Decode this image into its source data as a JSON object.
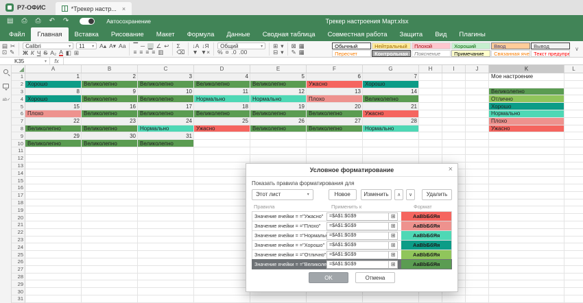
{
  "titlebar": {
    "app_name": "Р7-ОФИС",
    "tab_title": "*Трекер настр...",
    "tab_close": "×"
  },
  "ribbon": {
    "autosave_label": "Автосохранение",
    "doc_title": "Трекер настроения Март.xlsx",
    "tabs": [
      {
        "label": "Файл",
        "active": false
      },
      {
        "label": "Главная",
        "active": true
      },
      {
        "label": "Вставка",
        "active": false
      },
      {
        "label": "Рисование",
        "active": false
      },
      {
        "label": "Макет",
        "active": false
      },
      {
        "label": "Формула",
        "active": false
      },
      {
        "label": "Данные",
        "active": false
      },
      {
        "label": "Сводная таблица",
        "active": false
      },
      {
        "label": "Совместная работа",
        "active": false
      },
      {
        "label": "Защита",
        "active": false
      },
      {
        "label": "Вид",
        "active": false
      },
      {
        "label": "Плагины",
        "active": false
      }
    ],
    "icons": {
      "save": "▤",
      "print": "⎙",
      "quick_print": "⎙",
      "undo": "↶",
      "redo": "↷"
    }
  },
  "toolbar": {
    "font_name": "Calibri",
    "font_size": "11",
    "number_format": "Общий",
    "icons": {
      "paste": "▤",
      "cut": "✂",
      "copy": "⊡",
      "copy_style": "✎",
      "inc_font": "A▴",
      "dec_font": "A▾",
      "case": "Aa",
      "bold": "Ж",
      "italic": "К",
      "underline": "Ч",
      "strike": "S",
      "subscript": "A₂",
      "font_color": "А",
      "fill_color": "◧",
      "borders": "⊞",
      "valign_top": "▔",
      "valign_mid": "─",
      "valign_bot": "▁",
      "orientation": "∠",
      "wrap": "↩",
      "align_left": "≡",
      "align_center": "≡",
      "align_right": "≡",
      "align_just": "≡",
      "merge": "▥",
      "sum": "Σ",
      "clear": "⌫",
      "sort_asc": "↓А",
      "sort_desc": "↓Я",
      "filter": "▼",
      "clear_filter": "▼×",
      "percent": "%",
      "accounting": "¤",
      "dec_decimal": ".0",
      "inc_decimal": ".00",
      "insert_cells": "⊞",
      "delete_cells": "⊟",
      "clear_style": "⊠",
      "cond_format": "▦",
      "paintbrush": "✎",
      "table_template": "▦",
      "dropdown": "▾"
    },
    "style_gallery": {
      "items": [
        {
          "label": "Обычный",
          "bg": "#ffffff",
          "fg": "#000000",
          "border": "#5b5b5b",
          "selected": true
        },
        {
          "label": "Нейтральный",
          "bg": "#ffeb9c",
          "fg": "#9c6500"
        },
        {
          "label": "Плохой",
          "bg": "#ffc7ce",
          "fg": "#9c0006"
        },
        {
          "label": "Хороший",
          "bg": "#c6efce",
          "fg": "#006100"
        },
        {
          "label": "Ввод",
          "bg": "#ffcc99",
          "fg": "#3f3f76",
          "border": "#7f7f7f"
        },
        {
          "label": "Вывод",
          "bg": "#f2f2f2",
          "fg": "#3f3f3f",
          "border": "#3f3f3f"
        },
        {
          "label": "Пересчет",
          "bg": "#ffffff",
          "fg": "#fa7d00"
        },
        {
          "label": "Контрольная я",
          "bg": "#a5a5a5",
          "fg": "#ffffff",
          "bold": true,
          "border": "#3f3f3f"
        },
        {
          "label": "Пояснение",
          "bg": "#ffffff",
          "fg": "#7f7f7f",
          "italic": true
        },
        {
          "label": "Примечание",
          "bg": "#ffffcc",
          "fg": "#000000",
          "border": "#b2b2b2"
        },
        {
          "label": "Связанная ячей",
          "bg": "#ffffff",
          "fg": "#fa7d00",
          "underline": true
        },
        {
          "label": "Текст предупре",
          "bg": "#ffffff",
          "fg": "#ff0000"
        }
      ]
    }
  },
  "formula_bar": {
    "name_box": "K35",
    "fx_label": "fx",
    "input_value": ""
  },
  "side_panel": {
    "icons": [
      "search-icon",
      "comments-icon",
      "spellcheck-icon"
    ],
    "spell_glyph": "ab✓"
  },
  "grid": {
    "columns": [
      {
        "id": "A"
      },
      {
        "id": "B"
      },
      {
        "id": "C"
      },
      {
        "id": "D"
      },
      {
        "id": "E"
      },
      {
        "id": "F"
      },
      {
        "id": "G"
      },
      {
        "id": "H"
      },
      {
        "id": "I"
      },
      {
        "id": "J"
      },
      {
        "id": "K",
        "selected": true
      },
      {
        "id": "L"
      }
    ],
    "row_count": 32,
    "moods": {
      "Великолепно": {
        "bg": "#5b9c52"
      },
      "Отлично": {
        "bg": "#90c55b"
      },
      "Хорошо": {
        "bg": "#0c9c87"
      },
      "Нормально": {
        "bg": "#4ed8b5"
      },
      "Плохо": {
        "bg": "#ee928e"
      },
      "Ужасно": {
        "bg": "#f5655f"
      }
    },
    "cells": [
      {
        "r": 1,
        "c": "A",
        "v": "1",
        "t": "num"
      },
      {
        "r": 1,
        "c": "B",
        "v": "2",
        "t": "num"
      },
      {
        "r": 1,
        "c": "C",
        "v": "3",
        "t": "num"
      },
      {
        "r": 1,
        "c": "D",
        "v": "4",
        "t": "num"
      },
      {
        "r": 1,
        "c": "E",
        "v": "5",
        "t": "num"
      },
      {
        "r": 1,
        "c": "F",
        "v": "6",
        "t": "num"
      },
      {
        "r": 1,
        "c": "G",
        "v": "7",
        "t": "num"
      },
      {
        "r": 1,
        "c": "K",
        "v": "Мое настроение",
        "t": "text"
      },
      {
        "r": 2,
        "c": "A",
        "v": "Хорошо",
        "t": "mood"
      },
      {
        "r": 2,
        "c": "B",
        "v": "Великолепно",
        "t": "mood"
      },
      {
        "r": 2,
        "c": "C",
        "v": "Великолепно",
        "t": "mood"
      },
      {
        "r": 2,
        "c": "D",
        "v": "Великолепно",
        "t": "mood"
      },
      {
        "r": 2,
        "c": "E",
        "v": "Великолепно",
        "t": "mood"
      },
      {
        "r": 2,
        "c": "F",
        "v": "Ужасно",
        "t": "mood"
      },
      {
        "r": 2,
        "c": "G",
        "v": "Хорошо",
        "t": "mood"
      },
      {
        "r": 3,
        "c": "A",
        "v": "8",
        "t": "num"
      },
      {
        "r": 3,
        "c": "B",
        "v": "9",
        "t": "num"
      },
      {
        "r": 3,
        "c": "C",
        "v": "10",
        "t": "num"
      },
      {
        "r": 3,
        "c": "D",
        "v": "11",
        "t": "num"
      },
      {
        "r": 3,
        "c": "E",
        "v": "12",
        "t": "num"
      },
      {
        "r": 3,
        "c": "F",
        "v": "13",
        "t": "num"
      },
      {
        "r": 3,
        "c": "G",
        "v": "14",
        "t": "num"
      },
      {
        "r": 3,
        "c": "K",
        "v": "Великолепно",
        "t": "mood"
      },
      {
        "r": 4,
        "c": "A",
        "v": "Хорошо",
        "t": "mood"
      },
      {
        "r": 4,
        "c": "B",
        "v": "Великолепно",
        "t": "mood"
      },
      {
        "r": 4,
        "c": "C",
        "v": "Великолепно",
        "t": "mood"
      },
      {
        "r": 4,
        "c": "D",
        "v": "Нормально",
        "t": "mood"
      },
      {
        "r": 4,
        "c": "E",
        "v": "Нормально",
        "t": "mood"
      },
      {
        "r": 4,
        "c": "F",
        "v": "Плохо",
        "t": "mood"
      },
      {
        "r": 4,
        "c": "G",
        "v": "Великолепно",
        "t": "mood"
      },
      {
        "r": 4,
        "c": "K",
        "v": "Отлично",
        "t": "mood"
      },
      {
        "r": 5,
        "c": "A",
        "v": "15",
        "t": "num"
      },
      {
        "r": 5,
        "c": "B",
        "v": "16",
        "t": "num"
      },
      {
        "r": 5,
        "c": "C",
        "v": "17",
        "t": "num"
      },
      {
        "r": 5,
        "c": "D",
        "v": "18",
        "t": "num"
      },
      {
        "r": 5,
        "c": "E",
        "v": "19",
        "t": "num"
      },
      {
        "r": 5,
        "c": "F",
        "v": "20",
        "t": "num"
      },
      {
        "r": 5,
        "c": "G",
        "v": "21",
        "t": "num"
      },
      {
        "r": 5,
        "c": "K",
        "v": "Хорошо",
        "t": "mood"
      },
      {
        "r": 6,
        "c": "A",
        "v": "Плохо",
        "t": "mood"
      },
      {
        "r": 6,
        "c": "B",
        "v": "Великолепно",
        "t": "mood"
      },
      {
        "r": 6,
        "c": "C",
        "v": "Великолепно",
        "t": "mood"
      },
      {
        "r": 6,
        "c": "D",
        "v": "Великолепно",
        "t": "mood"
      },
      {
        "r": 6,
        "c": "E",
        "v": "Великолепно",
        "t": "mood"
      },
      {
        "r": 6,
        "c": "F",
        "v": "Великолепно",
        "t": "mood"
      },
      {
        "r": 6,
        "c": "G",
        "v": "Ужасно",
        "t": "mood"
      },
      {
        "r": 6,
        "c": "K",
        "v": "Нормально",
        "t": "mood"
      },
      {
        "r": 7,
        "c": "A",
        "v": "22",
        "t": "num"
      },
      {
        "r": 7,
        "c": "B",
        "v": "23",
        "t": "num"
      },
      {
        "r": 7,
        "c": "C",
        "v": "24",
        "t": "num"
      },
      {
        "r": 7,
        "c": "D",
        "v": "25",
        "t": "num"
      },
      {
        "r": 7,
        "c": "E",
        "v": "26",
        "t": "num"
      },
      {
        "r": 7,
        "c": "F",
        "v": "27",
        "t": "num"
      },
      {
        "r": 7,
        "c": "G",
        "v": "28",
        "t": "num"
      },
      {
        "r": 7,
        "c": "K",
        "v": "Плохо",
        "t": "mood"
      },
      {
        "r": 8,
        "c": "A",
        "v": "Великолепно",
        "t": "mood"
      },
      {
        "r": 8,
        "c": "B",
        "v": "Великолепно",
        "t": "mood"
      },
      {
        "r": 8,
        "c": "C",
        "v": "Нормально",
        "t": "mood"
      },
      {
        "r": 8,
        "c": "D",
        "v": "Ужасно",
        "t": "mood"
      },
      {
        "r": 8,
        "c": "E",
        "v": "Великолепно",
        "t": "mood"
      },
      {
        "r": 8,
        "c": "F",
        "v": "Великолепно",
        "t": "mood"
      },
      {
        "r": 8,
        "c": "G",
        "v": "Нормально",
        "t": "mood"
      },
      {
        "r": 8,
        "c": "K",
        "v": "Ужасно",
        "t": "mood"
      },
      {
        "r": 9,
        "c": "A",
        "v": "29",
        "t": "num"
      },
      {
        "r": 9,
        "c": "B",
        "v": "30",
        "t": "num"
      },
      {
        "r": 9,
        "c": "C",
        "v": "31",
        "t": "num"
      },
      {
        "r": 10,
        "c": "A",
        "v": "Великолепно",
        "t": "mood"
      },
      {
        "r": 10,
        "c": "B",
        "v": "Великолепно",
        "t": "mood"
      },
      {
        "r": 10,
        "c": "C",
        "v": "Великолепно",
        "t": "mood"
      }
    ]
  },
  "dialog": {
    "title": "Условное форматирование",
    "close": "×",
    "show_rules_label": "Показать правила форматирования для",
    "scope_value": "Этот лист",
    "buttons": {
      "new": "Новое",
      "edit": "Изменить",
      "up": "∧",
      "down": "∨",
      "delete": "Удалить",
      "ok": "OK",
      "cancel": "Отмена"
    },
    "list_headers": {
      "rules": "Правила",
      "applies": "Применить к",
      "format": "Формат"
    },
    "preview_text": "AaBbБбЯя",
    "rules": [
      {
        "rule": "Значение ячейки = =\"Ужасно\"",
        "range": "=$A$1:$G$9",
        "bg": "#f5655f",
        "selected": false
      },
      {
        "rule": "Значение ячейки = =\"Плохо\"",
        "range": "=$A$1:$G$9",
        "bg": "#ee928e",
        "selected": false
      },
      {
        "rule": "Значение ячейки = =\"Нормально\"",
        "range": "=$A$1:$G$9",
        "bg": "#4ed8b5",
        "selected": false
      },
      {
        "rule": "Значение ячейки = =\"Хорошо\"",
        "range": "=$A$1:$G$9",
        "bg": "#0c9c87",
        "selected": false
      },
      {
        "rule": "Значение ячейки = =\"Отлично\"",
        "range": "=$A$1:$G$9",
        "bg": "#90c55b",
        "selected": false
      },
      {
        "rule": "Значение ячейки = =\"Великолепно\"",
        "range": "=$A$1:$G$9",
        "bg": "#5b9c52",
        "selected": true
      }
    ]
  }
}
